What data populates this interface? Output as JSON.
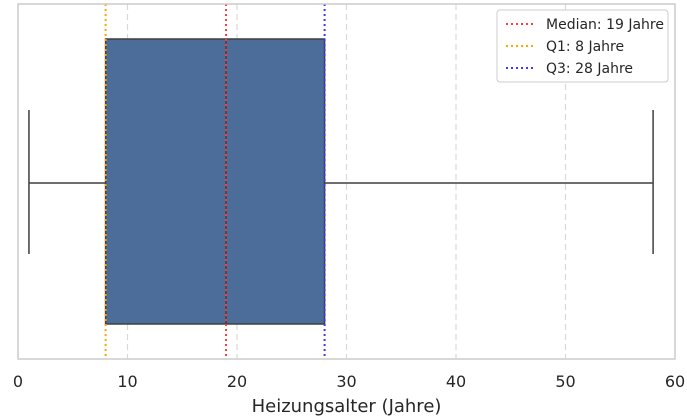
{
  "chart_data": {
    "type": "boxplot",
    "title": "",
    "xlabel": "Heizungsalter (Jahre)",
    "ylabel": "",
    "xlim": [
      0,
      60
    ],
    "xticks": [
      0,
      10,
      20,
      30,
      40,
      50,
      60
    ],
    "grid": true,
    "orientation": "horizontal",
    "box": {
      "whisker_low": 1,
      "q1": 8,
      "median": 19,
      "q3": 28,
      "whisker_high": 58
    },
    "reference_lines": [
      {
        "label": "Median: 19 Jahre",
        "value": 19,
        "color": "#ff3b3b"
      },
      {
        "label": "Q1: 8 Jahre",
        "value": 8,
        "color": "#ffa500"
      },
      {
        "label": "Q3: 28 Jahre",
        "value": 28,
        "color": "#3a3aff"
      }
    ],
    "legend_position": "top-right",
    "colors": {
      "box_fill": "#4c6d99",
      "line": "#3f3f3f",
      "grid": "#d9d9d9",
      "frame": "#cccccc"
    }
  }
}
